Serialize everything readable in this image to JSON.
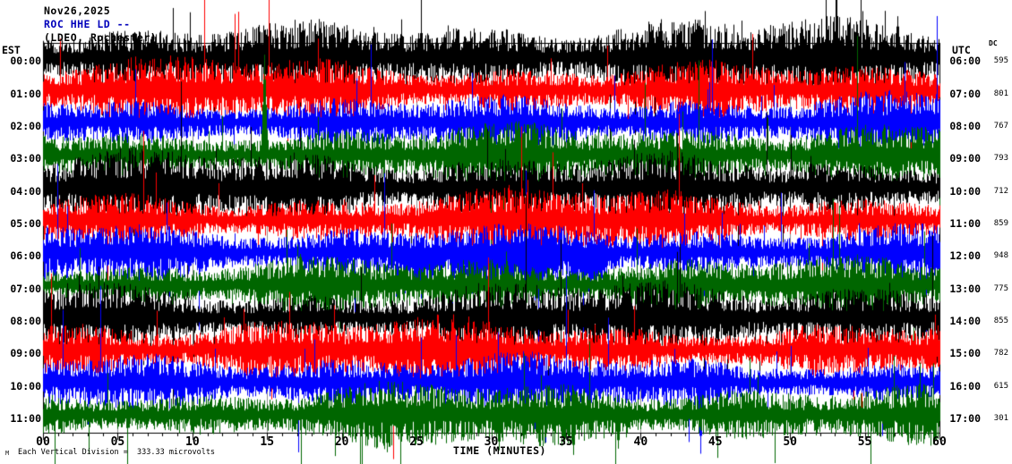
{
  "chart_data": {
    "type": "line",
    "subtype": "helicorder-seismogram",
    "header": {
      "date": "Nov26,2025",
      "station": "ROC HHE LD --",
      "location": "(LDEO, Rochester)"
    },
    "left_axis_label": "EST",
    "right_axis_label": "UTC",
    "dc_column_label": "DC",
    "rows": [
      {
        "est": "00:00",
        "utc": "06:00",
        "dc": "595",
        "color": "#000000"
      },
      {
        "est": "01:00",
        "utc": "07:00",
        "dc": "801",
        "color": "#ff0000"
      },
      {
        "est": "02:00",
        "utc": "08:00",
        "dc": "767",
        "color": "#0000ff"
      },
      {
        "est": "03:00",
        "utc": "09:00",
        "dc": "793",
        "color": "#006600"
      },
      {
        "est": "04:00",
        "utc": "10:00",
        "dc": "712",
        "color": "#000000"
      },
      {
        "est": "05:00",
        "utc": "11:00",
        "dc": "859",
        "color": "#ff0000"
      },
      {
        "est": "06:00",
        "utc": "12:00",
        "dc": "948",
        "color": "#0000ff"
      },
      {
        "est": "07:00",
        "utc": "13:00",
        "dc": "775",
        "color": "#006600"
      },
      {
        "est": "08:00",
        "utc": "14:00",
        "dc": "855",
        "color": "#000000"
      },
      {
        "est": "09:00",
        "utc": "15:00",
        "dc": "782",
        "color": "#ff0000"
      },
      {
        "est": "10:00",
        "utc": "16:00",
        "dc": "615",
        "color": "#0000ff"
      },
      {
        "est": "11:00",
        "utc": "17:00",
        "dc": "301",
        "color": "#006600"
      }
    ],
    "x_axis": {
      "label": "TIME (MINUTES)",
      "ticks": [
        "00",
        "05",
        "10",
        "15",
        "20",
        "25",
        "30",
        "35",
        "40",
        "45",
        "50",
        "55",
        "60"
      ],
      "xlim": [
        0,
        60
      ],
      "minor_tick_minutes": 1,
      "major_tick_minutes": 5
    },
    "footer": {
      "scale_note": "Each Vertical Division =  333.33 microvolts",
      "corner_mark": "M"
    },
    "colors": {
      "trace_cycle": [
        "#000000",
        "#ff0000",
        "#0000ff",
        "#006600"
      ],
      "station_text": "#0000bb",
      "gridline": "#909090",
      "frame": "#000000"
    },
    "layout": {
      "grid": "vertical gray lines every 5 minutes",
      "legend": "none",
      "rows_per_plot": 12,
      "minutes_per_row": 60
    }
  }
}
